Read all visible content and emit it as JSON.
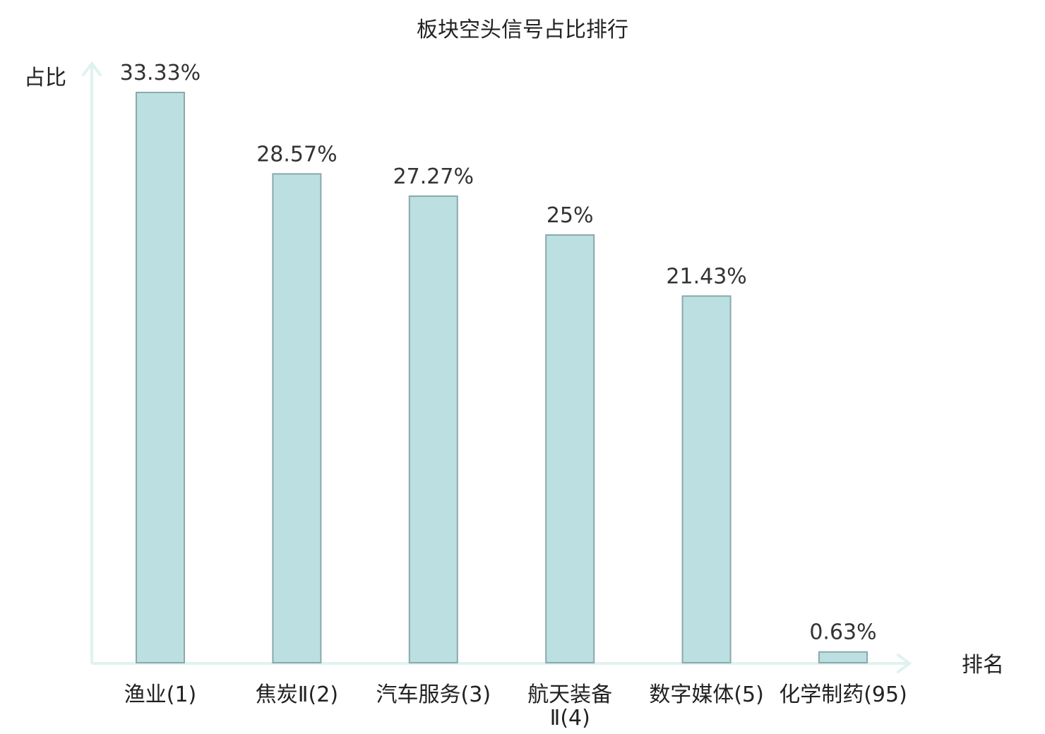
{
  "chart_data": {
    "type": "bar",
    "title": "板块空头信号占比排行",
    "ylabel": "占比",
    "xlabel": "排名",
    "ylim": [
      0,
      33.33
    ],
    "grid": false,
    "legend": "none",
    "categories": [
      [
        "渔业(1)"
      ],
      [
        "焦炭Ⅱ(2)"
      ],
      [
        "汽车服务(3)"
      ],
      [
        "航天装备",
        "Ⅱ(4)"
      ],
      [
        "数字媒体(5)"
      ],
      [
        "化学制药(95)"
      ]
    ],
    "values": [
      33.33,
      28.57,
      27.27,
      25,
      21.43,
      0.63
    ],
    "value_labels": [
      "33.33%",
      "28.57%",
      "27.27%",
      "25%",
      "21.43%",
      "0.63%"
    ],
    "highlight_index": 5
  },
  "colors": {
    "bar_fill": "#bce0e2",
    "bar_stroke": "#8aa9ab",
    "axis": "#dff2ef",
    "text": "#222222",
    "value_text": "#333333",
    "highlight": "#e02020"
  }
}
